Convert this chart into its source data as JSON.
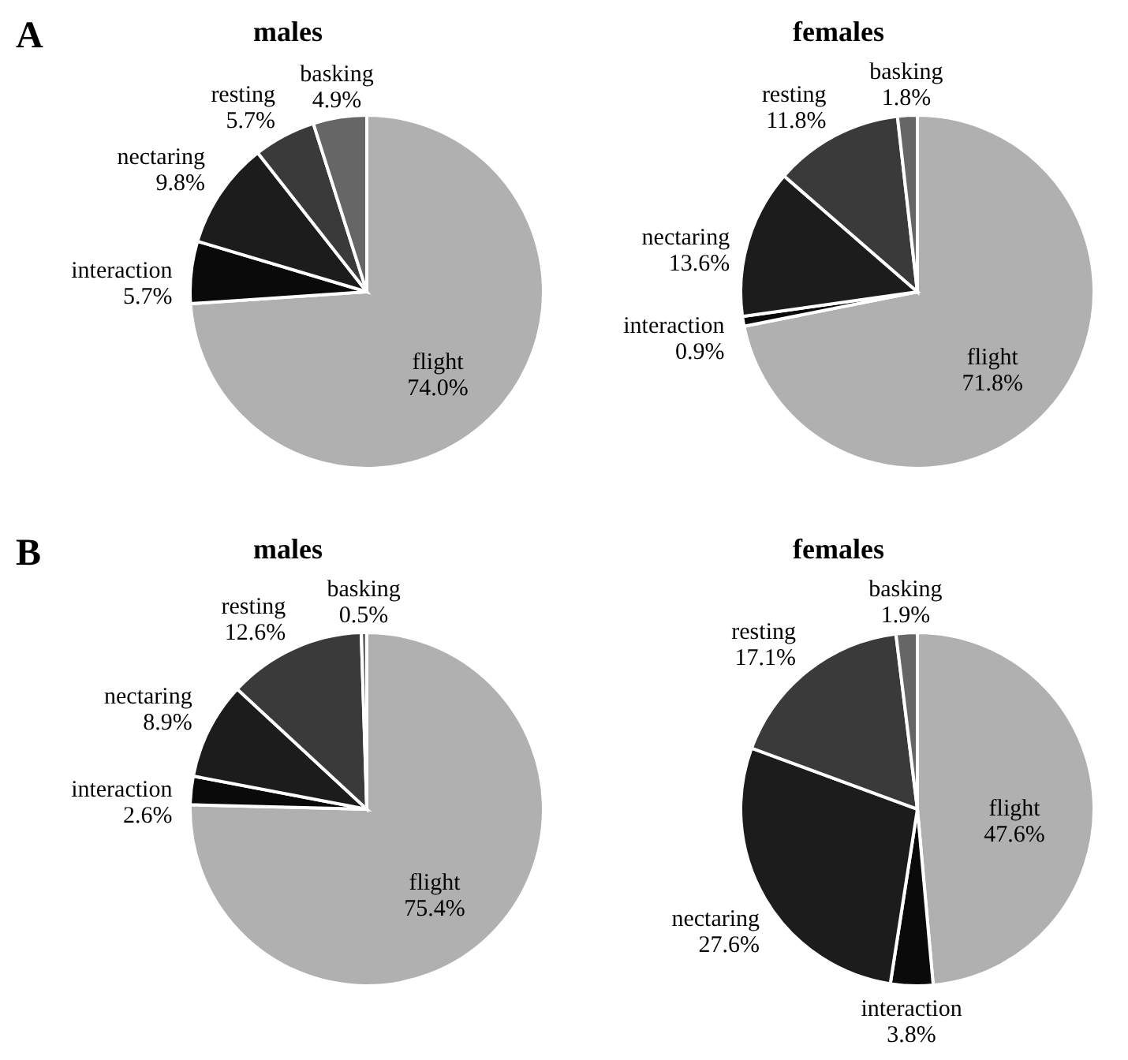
{
  "chart_data": [
    {
      "type": "pie",
      "title": "males",
      "annotations": [
        "A"
      ],
      "categories": [
        "flight",
        "interaction",
        "nectaring",
        "resting",
        "basking"
      ],
      "values": [
        74.0,
        5.7,
        9.8,
        5.7,
        4.9
      ],
      "value_labels": [
        "74.0%",
        "5.7%",
        "9.8%",
        "5.7%",
        "4.9%"
      ],
      "colors": [
        "#b0b0b0",
        "#0a0a0a",
        "#1c1c1c",
        "#3a3a3a",
        "#666666"
      ]
    },
    {
      "type": "pie",
      "title": "females",
      "categories": [
        "flight",
        "interaction",
        "nectaring",
        "resting",
        "basking"
      ],
      "values": [
        71.8,
        0.9,
        13.6,
        11.8,
        1.8
      ],
      "value_labels": [
        "71.8%",
        "0.9%",
        "13.6%",
        "11.8%",
        "1.8%"
      ],
      "colors": [
        "#b0b0b0",
        "#0a0a0a",
        "#1c1c1c",
        "#3a3a3a",
        "#666666"
      ]
    },
    {
      "type": "pie",
      "title": "males",
      "annotations": [
        "B"
      ],
      "categories": [
        "flight",
        "interaction",
        "nectaring",
        "resting",
        "basking"
      ],
      "values": [
        75.4,
        2.6,
        8.9,
        12.6,
        0.5
      ],
      "value_labels": [
        "75.4%",
        "2.6%",
        "8.9%",
        "12.6%",
        "0.5%"
      ],
      "colors": [
        "#b0b0b0",
        "#0a0a0a",
        "#1c1c1c",
        "#3a3a3a",
        "#666666"
      ]
    },
    {
      "type": "pie",
      "title": "females",
      "categories": [
        "flight",
        "interaction",
        "nectaring",
        "resting",
        "basking"
      ],
      "values": [
        47.6,
        3.8,
        27.6,
        17.1,
        1.9
      ],
      "value_labels": [
        "47.6%",
        "3.8%",
        "27.6%",
        "17.1%",
        "1.9%"
      ],
      "colors": [
        "#b0b0b0",
        "#0a0a0a",
        "#1c1c1c",
        "#3a3a3a",
        "#666666"
      ]
    }
  ]
}
